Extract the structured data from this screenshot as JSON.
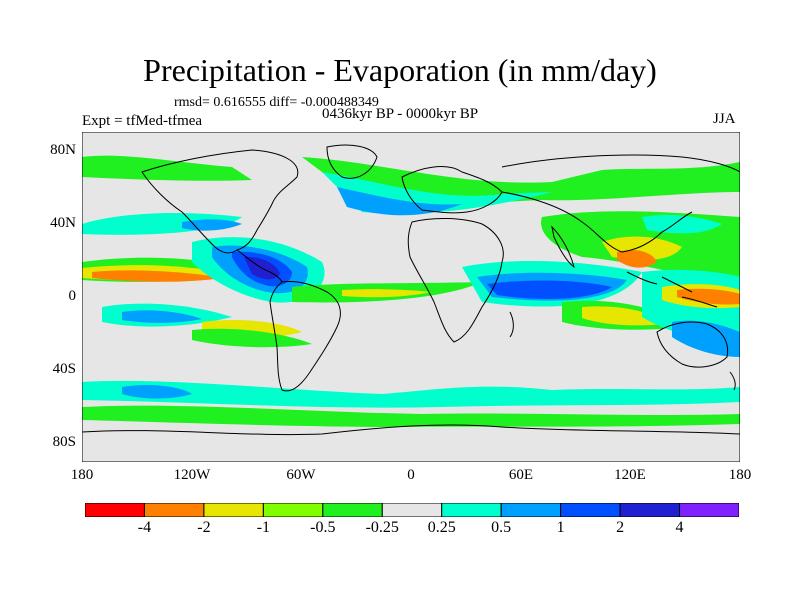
{
  "title": "Precipitation - Evaporation (in mm/day)",
  "stats": "rmsd= 0.616555 diff= -0.000488349",
  "period": "0436kyr BP - 0000kyr BP",
  "expt": "Expt = tfMed-tfmea",
  "season": "JJA",
  "lat_ticks": [
    "80N",
    "40N",
    "0",
    "40S",
    "80S"
  ],
  "lon_ticks": [
    "180",
    "120W",
    "60W",
    "0",
    "60E",
    "120E",
    "180"
  ],
  "colorbar": {
    "labels": [
      "-4",
      "-2",
      "-1",
      "-0.5",
      "-0.25",
      "0.25",
      "0.5",
      "1",
      "2",
      "4"
    ],
    "colors": [
      "#ff0000",
      "#ff8000",
      "#e6e600",
      "#80ff00",
      "#20f020",
      "#e6e6e6",
      "#00ffcc",
      "#00a0ff",
      "#0050ff",
      "#2020d0",
      "#8020ff"
    ]
  },
  "palette": {
    "ocean": "#e6e6e6",
    "coast": "#000000"
  }
}
